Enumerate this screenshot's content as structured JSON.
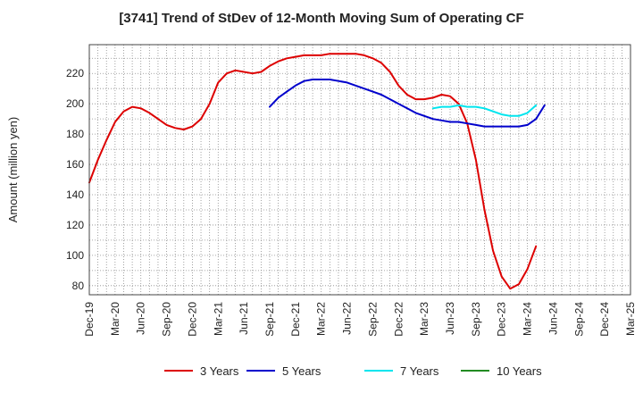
{
  "chart_data": {
    "type": "line",
    "title": "[3741]  Trend of StDev of 12-Month Moving Sum of Operating CF",
    "xlabel": "",
    "ylabel": "Amount (million yen)",
    "ylim": [
      74,
      239
    ],
    "yticks": [
      80,
      100,
      120,
      140,
      160,
      180,
      200,
      220
    ],
    "x_start": "Dec-19",
    "x_end": "Mar-25",
    "xtick_labels": [
      "Dec-19",
      "Mar-20",
      "Jun-20",
      "Sep-20",
      "Dec-20",
      "Mar-21",
      "Jun-21",
      "Sep-21",
      "Dec-21",
      "Mar-22",
      "Jun-22",
      "Sep-22",
      "Dec-22",
      "Mar-23",
      "Jun-23",
      "Sep-23",
      "Dec-23",
      "Mar-24",
      "Jun-24",
      "Sep-24",
      "Dec-24",
      "Mar-25"
    ],
    "grid": true,
    "legend_position": "bottom",
    "series": [
      {
        "name": "3 Years",
        "color": "#dd0000",
        "start_index": 0,
        "values": [
          148,
          163,
          176,
          188,
          195,
          198,
          197,
          194,
          190,
          186,
          184,
          183,
          185,
          190,
          200,
          214,
          220,
          222,
          221,
          220,
          221,
          225,
          228,
          230,
          231,
          232,
          232,
          232,
          233,
          233,
          233,
          233,
          232,
          230,
          227,
          221,
          212,
          206,
          203,
          203,
          204,
          206,
          205,
          200,
          187,
          163,
          130,
          103,
          86,
          78,
          81,
          91,
          106
        ]
      },
      {
        "name": "5 Years",
        "color": "#0000cc",
        "start_index": 21,
        "values": [
          198,
          204,
          208,
          212,
          215,
          216,
          216,
          216,
          215,
          214,
          212,
          210,
          208,
          206,
          203,
          200,
          197,
          194,
          192,
          190,
          189,
          188,
          188,
          187,
          186,
          185,
          185,
          185,
          185,
          185,
          186,
          190,
          199
        ]
      },
      {
        "name": "7 Years",
        "color": "#00e5ee",
        "start_index": 40,
        "values": [
          197,
          198,
          198,
          199,
          198,
          198,
          197,
          195,
          193,
          192,
          192,
          194,
          199
        ]
      },
      {
        "name": "10 Years",
        "color": "#228b22",
        "start_index": 0,
        "values": []
      }
    ]
  }
}
